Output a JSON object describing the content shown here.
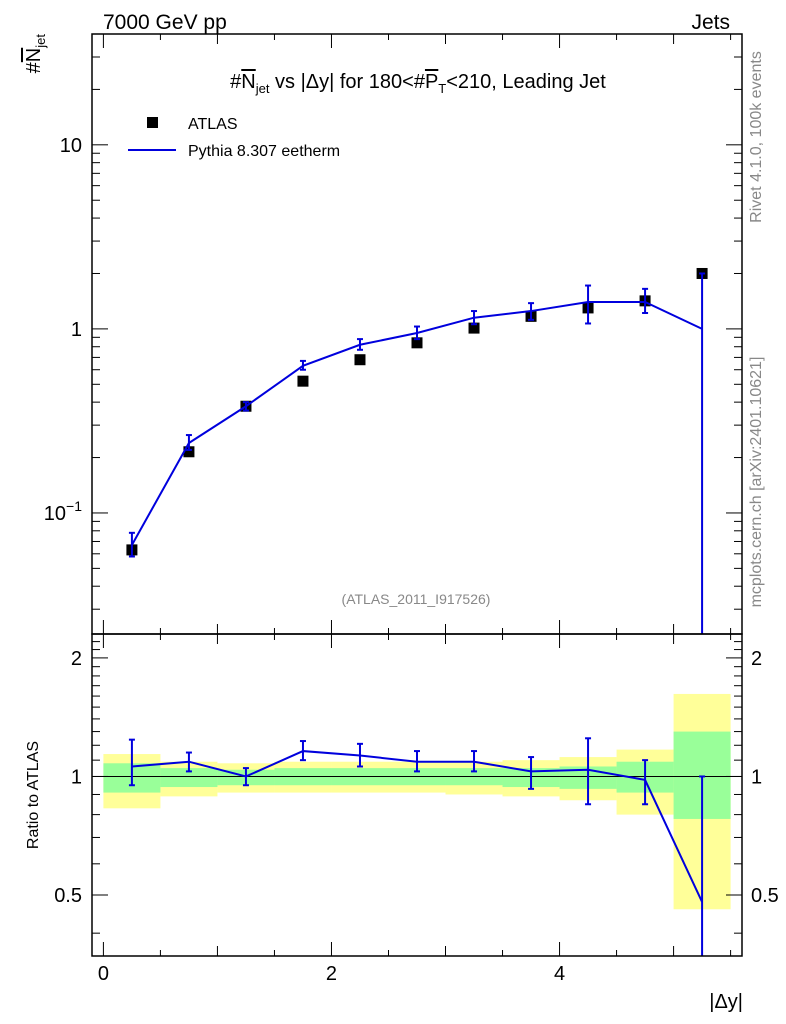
{
  "header": {
    "left_label": "7000 GeV pp",
    "right_label": "Jets"
  },
  "side_labels": {
    "rivet": "Rivet 4.1.0,  100k events",
    "mcplots": "mcplots.cern.ch [arXiv:2401.10621]"
  },
  "chart_data": [
    {
      "type": "scatter",
      "title": "#N_jet vs |Δy| for 180<#P_T<210, Leading Jet",
      "title_parts": {
        "prefix": "#",
        "n": "N",
        "n_sub": "jet",
        "mid": " vs |Δy| for 180<#",
        "p": "P",
        "p_sub": "T",
        "suffix": "<210, Leading Jet"
      },
      "ylabel": "#N_jet",
      "ylabel_parts": {
        "prefix": "#",
        "main": "N",
        "sub": "jet"
      },
      "yscale": "log",
      "ylim": [
        0.022,
        40
      ],
      "xlim": [
        -0.1,
        5.6
      ],
      "ytick_labels": [
        {
          "value": 0.1,
          "base": "10",
          "exp": "−1"
        },
        {
          "value": 1,
          "base": "1",
          "exp": ""
        },
        {
          "value": 10,
          "base": "10",
          "exp": ""
        }
      ],
      "watermark": "(ATLAS_2011_I917526)",
      "legend": {
        "position": "top-left",
        "entries": [
          "ATLAS",
          "Pythia 8.307 eetherm"
        ]
      },
      "series": [
        {
          "name": "ATLAS",
          "marker": "square",
          "color": "#000000",
          "x": [
            0.25,
            0.75,
            1.25,
            1.75,
            2.25,
            2.75,
            3.25,
            3.75,
            4.25,
            4.75,
            5.25
          ],
          "y": [
            0.063,
            0.215,
            0.38,
            0.52,
            0.68,
            0.84,
            1.01,
            1.17,
            1.3,
            1.42,
            2.0
          ]
        },
        {
          "name": "Pythia 8.307 eetherm",
          "line": true,
          "color": "#0000dd",
          "x": [
            0.25,
            0.75,
            1.25,
            1.75,
            2.25,
            2.75,
            3.25,
            3.75,
            4.25,
            4.75,
            5.25
          ],
          "y": [
            0.067,
            0.24,
            0.38,
            0.63,
            0.82,
            0.95,
            1.15,
            1.25,
            1.4,
            1.4,
            1.0
          ],
          "err_lo": [
            0.058,
            0.22,
            0.36,
            0.6,
            0.77,
            0.88,
            1.06,
            1.12,
            1.07,
            1.22,
            0.001
          ],
          "err_hi": [
            0.078,
            0.265,
            0.4,
            0.67,
            0.88,
            1.03,
            1.25,
            1.38,
            1.72,
            1.65,
            2.0
          ]
        }
      ]
    },
    {
      "type": "line",
      "ylabel": "Ratio to ATLAS",
      "xlabel": "|Δy|",
      "ylim": [
        0.35,
        2.3
      ],
      "xlim": [
        -0.1,
        5.6
      ],
      "xticks": [
        0,
        2,
        4
      ],
      "yticks": [
        0.5,
        1,
        2
      ],
      "ytick_labels": [
        "0.5",
        "1",
        "2"
      ],
      "reference_line": 1.0,
      "bins": [
        [
          0,
          0.5
        ],
        [
          0.5,
          1.0
        ],
        [
          1.0,
          1.5
        ],
        [
          1.5,
          2.0
        ],
        [
          2.0,
          2.5
        ],
        [
          2.5,
          3.0
        ],
        [
          3.0,
          3.5
        ],
        [
          3.5,
          4.0
        ],
        [
          4.0,
          4.5
        ],
        [
          4.5,
          5.0
        ],
        [
          5.0,
          5.5
        ]
      ],
      "band_yellow": {
        "color": "#ffff99",
        "lo": [
          0.83,
          0.89,
          0.91,
          0.91,
          0.91,
          0.91,
          0.9,
          0.89,
          0.87,
          0.8,
          0.46
        ],
        "hi": [
          1.14,
          1.09,
          1.08,
          1.09,
          1.09,
          1.09,
          1.09,
          1.1,
          1.12,
          1.17,
          1.62
        ]
      },
      "band_green": {
        "color": "#99ff99",
        "lo": [
          0.91,
          0.94,
          0.95,
          0.95,
          0.95,
          0.95,
          0.95,
          0.94,
          0.93,
          0.91,
          0.78
        ],
        "hi": [
          1.08,
          1.05,
          1.04,
          1.05,
          1.05,
          1.05,
          1.05,
          1.05,
          1.06,
          1.09,
          1.3
        ]
      },
      "series": [
        {
          "name": "Pythia 8.307 eetherm / ATLAS",
          "color": "#0000dd",
          "x": [
            0.25,
            0.75,
            1.25,
            1.75,
            2.25,
            2.75,
            3.25,
            3.75,
            4.25,
            4.75,
            5.25
          ],
          "y": [
            1.06,
            1.09,
            1.0,
            1.16,
            1.13,
            1.09,
            1.09,
            1.03,
            1.04,
            0.98,
            0.48
          ],
          "err_lo": [
            0.95,
            1.03,
            0.95,
            1.1,
            1.06,
            1.03,
            1.03,
            0.93,
            0.85,
            0.85,
            0.3
          ],
          "err_hi": [
            1.24,
            1.15,
            1.05,
            1.23,
            1.21,
            1.16,
            1.16,
            1.12,
            1.25,
            1.1,
            1.0
          ]
        }
      ]
    }
  ]
}
